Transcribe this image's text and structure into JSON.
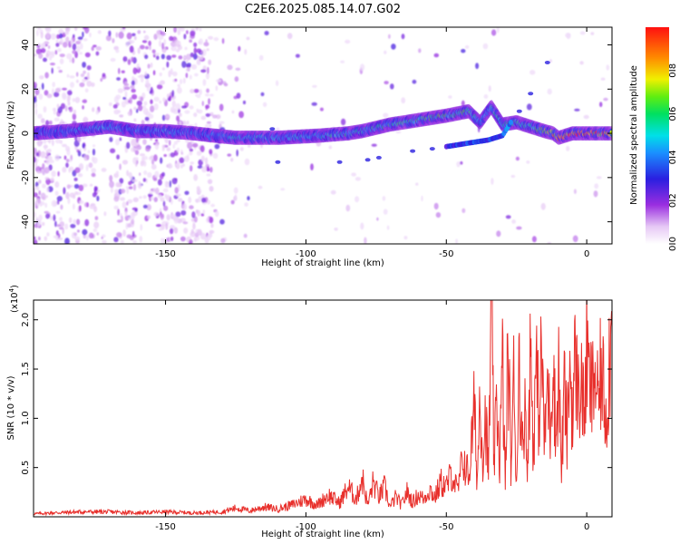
{
  "title": "C2E6.2025.085.14.07.G02",
  "chart_data": [
    {
      "type": "heatmap",
      "xlabel": "Height of straight line (km)",
      "ylabel": "Frequency (Hz)",
      "xlim": [
        -197,
        9
      ],
      "ylim": [
        -50,
        48
      ],
      "xticks": [
        -150,
        -100,
        -50,
        0
      ],
      "xtick_labels": [
        "-150",
        "-100",
        "-50",
        "0"
      ],
      "yticks": [
        -40,
        -20,
        0,
        20,
        40
      ],
      "ytick_labels": [
        "-40",
        "-20",
        "0",
        "20",
        "40"
      ],
      "colorbar": {
        "label": "Normalized spectral amplitude",
        "range": [
          0,
          1
        ],
        "ticks": [
          0.0,
          0.2,
          0.4,
          0.6,
          0.8
        ],
        "tick_labels": [
          "0.0",
          "0.2",
          "0.4",
          "0.6",
          "0.8"
        ],
        "colormap": "rainbow"
      },
      "ridge": {
        "x": [
          -197,
          -185,
          -170,
          -160,
          -150,
          -140,
          -133,
          -125,
          -110,
          -95,
          -85,
          -80,
          -70,
          -60,
          -50,
          -42,
          -38,
          -34,
          -30,
          -25,
          -20,
          -15,
          -12,
          -10,
          -5,
          0,
          9
        ],
        "y": [
          0,
          1,
          3,
          1,
          1,
          0,
          -1,
          -2,
          -2,
          -1,
          0,
          1,
          4,
          6,
          8,
          10,
          5,
          12,
          4,
          5,
          3,
          1,
          0,
          -2,
          0,
          0,
          0
        ],
        "amplitude": [
          0.35,
          0.4,
          0.45,
          0.4,
          0.45,
          0.4,
          0.4,
          0.5,
          0.45,
          0.5,
          0.55,
          0.5,
          0.55,
          0.6,
          0.6,
          0.6,
          0.45,
          0.55,
          0.55,
          0.6,
          0.55,
          0.65,
          0.8,
          0.9,
          0.9,
          0.9,
          0.85
        ]
      },
      "secondary_track": {
        "x": [
          -50,
          -40,
          -35,
          -30,
          -27
        ],
        "y": [
          -6,
          -4,
          -3,
          -1,
          5
        ],
        "amplitude": [
          0.3,
          0.35,
          0.3,
          0.35,
          0.4
        ]
      }
    },
    {
      "type": "line",
      "xlabel": "Height of straight line (km)",
      "ylabel": "SNR (10 * v/v)",
      "scale_label": "(x10",
      "scale_exponent": "4",
      "xlim": [
        -197,
        9
      ],
      "ylim": [
        0,
        2.2
      ],
      "xticks": [
        -150,
        -100,
        -50,
        0
      ],
      "xtick_labels": [
        "-150",
        "-100",
        "-50",
        "0"
      ],
      "yticks": [
        0.5,
        1.0,
        1.5,
        2.0
      ],
      "ytick_labels": [
        "0.5",
        "1.0",
        "1.5",
        "2.0"
      ],
      "color": "#e8302c",
      "series": [
        {
          "x": [
            -197,
            -190,
            -180,
            -170,
            -160,
            -150,
            -140,
            -130,
            -125,
            -120,
            -115,
            -110,
            -105,
            -100,
            -96,
            -92,
            -88,
            -85,
            -82,
            -80,
            -78,
            -76,
            -74,
            -72,
            -70,
            -68,
            -66,
            -64,
            -62,
            -60,
            -58,
            -56,
            -54,
            -52,
            -50,
            -48,
            -46,
            -44,
            -42,
            -40,
            -39,
            -38,
            -37,
            -36,
            -35,
            -34,
            -33,
            -32,
            -31,
            -30,
            -29,
            -28,
            -27,
            -26,
            -25,
            -24,
            -23,
            -22,
            -21,
            -20,
            -19,
            -18,
            -17,
            -16,
            -15,
            -14,
            -13,
            -12,
            -11,
            -10,
            -9,
            -8,
            -7,
            -6,
            -5,
            -4,
            -3,
            -2,
            -1,
            0,
            1,
            2,
            3,
            4,
            5,
            6,
            7,
            8,
            9
          ],
          "y": [
            0.03,
            0.04,
            0.05,
            0.05,
            0.04,
            0.05,
            0.04,
            0.05,
            0.09,
            0.06,
            0.1,
            0.08,
            0.12,
            0.18,
            0.12,
            0.22,
            0.14,
            0.3,
            0.18,
            0.4,
            0.12,
            0.35,
            0.2,
            0.3,
            0.1,
            0.2,
            0.12,
            0.25,
            0.15,
            0.22,
            0.18,
            0.28,
            0.2,
            0.35,
            0.3,
            0.45,
            0.25,
            0.6,
            0.4,
            1.1,
            0.35,
            1.3,
            0.6,
            1.05,
            0.4,
            2.2,
            0.5,
            1.2,
            0.55,
            1.55,
            0.3,
            1.8,
            0.5,
            1.35,
            0.35,
            1.7,
            0.6,
            1.25,
            0.5,
            1.8,
            0.65,
            1.55,
            1.0,
            1.7,
            0.7,
            1.4,
            0.9,
            1.75,
            0.75,
            1.5,
            0.45,
            1.3,
            0.8,
            1.55,
            1.05,
            1.65,
            1.2,
            1.45,
            1.0,
            1.7,
            1.3,
            1.25,
            1.5,
            1.1,
            1.45,
            1.3,
            1.0,
            1.6,
            1.85
          ]
        }
      ]
    }
  ]
}
